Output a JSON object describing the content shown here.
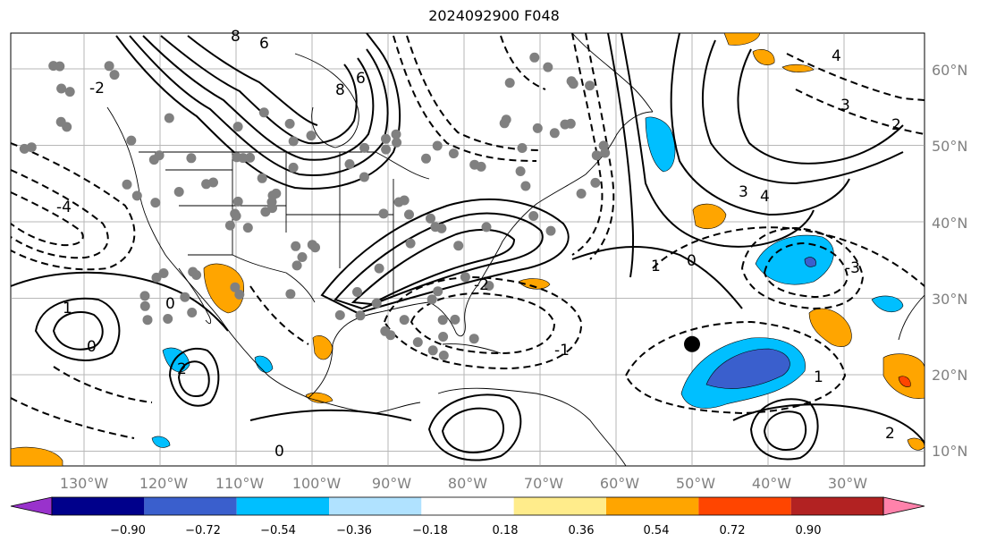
{
  "title": "2024092900 F048",
  "map": {
    "lon_labels": [
      "130°W",
      "120°W",
      "110°W",
      "100°W",
      "90°W",
      "80°W",
      "70°W",
      "60°W",
      "50°W",
      "40°W",
      "30°W"
    ],
    "lat_labels": [
      "60°N",
      "50°N",
      "40°N",
      "30°N",
      "20°N",
      "10°N"
    ],
    "contour_labels": [
      "8",
      "6",
      "8",
      "6",
      "4",
      "3",
      "2",
      "1",
      "0",
      "-1",
      "-2",
      "-3",
      "-4"
    ],
    "marker": {
      "lon": -50,
      "lat": 24
    }
  },
  "colorbar": {
    "ticks": [
      "−0.90",
      "−0.72",
      "−0.54",
      "−0.36",
      "−0.18",
      "0.18",
      "0.36",
      "0.54",
      "0.72",
      "0.90"
    ],
    "colors": [
      "#9932cc",
      "#00008b",
      "#3a5fcd",
      "#00bfff",
      "#b0e2ff",
      "#ffffff",
      "#ffec8b",
      "#ffa500",
      "#ff4500",
      "#b22222",
      "#ff82ab"
    ],
    "extend": "both"
  }
}
